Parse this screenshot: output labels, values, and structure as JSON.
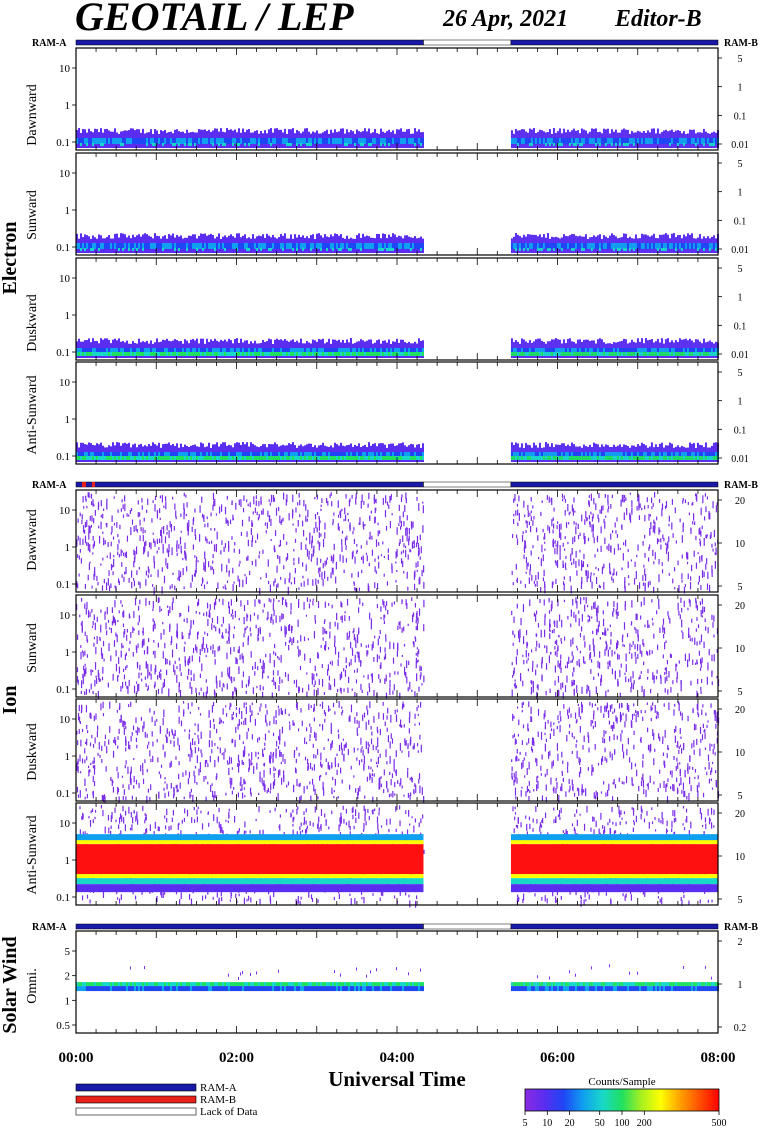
{
  "header": {
    "title": "GEOTAIL / LEP",
    "date": "26 Apr, 2021",
    "editor": "Editor-B"
  },
  "colors": {
    "ram_a": "#1a1aa8",
    "ram_b": "#e8201a",
    "no_data": "#ffffff",
    "colorbar": [
      "#8b2be2",
      "#5a2df0",
      "#1e46f5",
      "#10a0f0",
      "#18d8c8",
      "#20e060",
      "#a8f020",
      "#ffff00",
      "#ffa000",
      "#ff5000",
      "#ff0000"
    ]
  },
  "chart_data": {
    "type": "heatmap",
    "xlabel": "Universal Time",
    "x_ticks": [
      "00:00",
      "02:00",
      "04:00",
      "06:00",
      "08:00"
    ],
    "x_range_hours": [
      0,
      8
    ],
    "data_gaps_hours": [
      [
        4.33,
        5.42
      ]
    ],
    "colorbar": {
      "title": "Counts/Sample",
      "ticks": [
        "5",
        "10",
        "20",
        "50",
        "100",
        "200",
        "500"
      ],
      "scale": "log"
    },
    "legend": [
      {
        "label": "RAM-A",
        "color": "#1a1aa8"
      },
      {
        "label": "RAM-B",
        "color": "#e8201a"
      },
      {
        "label": "Lack of Data",
        "color": "#ffffff"
      }
    ],
    "groups": [
      {
        "name": "Electron",
        "left_axis_ticks": [
          "0.1",
          "1",
          "10"
        ],
        "right_axis_ticks": [
          "0.01",
          "0.1",
          "1",
          "5"
        ],
        "mode_left": "RAM-A",
        "mode_right": "RAM-B",
        "panels": [
          {
            "label": "Dawnward",
            "band": "low"
          },
          {
            "label": "Sunward",
            "band": "low"
          },
          {
            "label": "Duskward",
            "band": "low"
          },
          {
            "label": "Anti-Sunward",
            "band": "low"
          }
        ]
      },
      {
        "name": "Ion",
        "left_axis_ticks": [
          "0.1",
          "1",
          "10"
        ],
        "right_axis_ticks": [
          "5",
          "10",
          "20"
        ],
        "mode_left": "RAM-A",
        "mode_right": "RAM-B",
        "panels": [
          {
            "label": "Dawnward",
            "band": "sparse"
          },
          {
            "label": "Sunward",
            "band": "sparse"
          },
          {
            "label": "Duskward",
            "band": "sparse"
          },
          {
            "label": "Anti-Sunward",
            "band": "red"
          }
        ]
      },
      {
        "name": "Solar Wind",
        "left_axis_ticks": [
          "0.5",
          "1",
          "2",
          "5"
        ],
        "right_axis_ticks": [
          "0.2",
          "1",
          "2"
        ],
        "mode_left": "RAM-A",
        "mode_right": "RAM-B",
        "panels": [
          {
            "label": "Omni.",
            "band": "sw"
          }
        ]
      }
    ]
  }
}
